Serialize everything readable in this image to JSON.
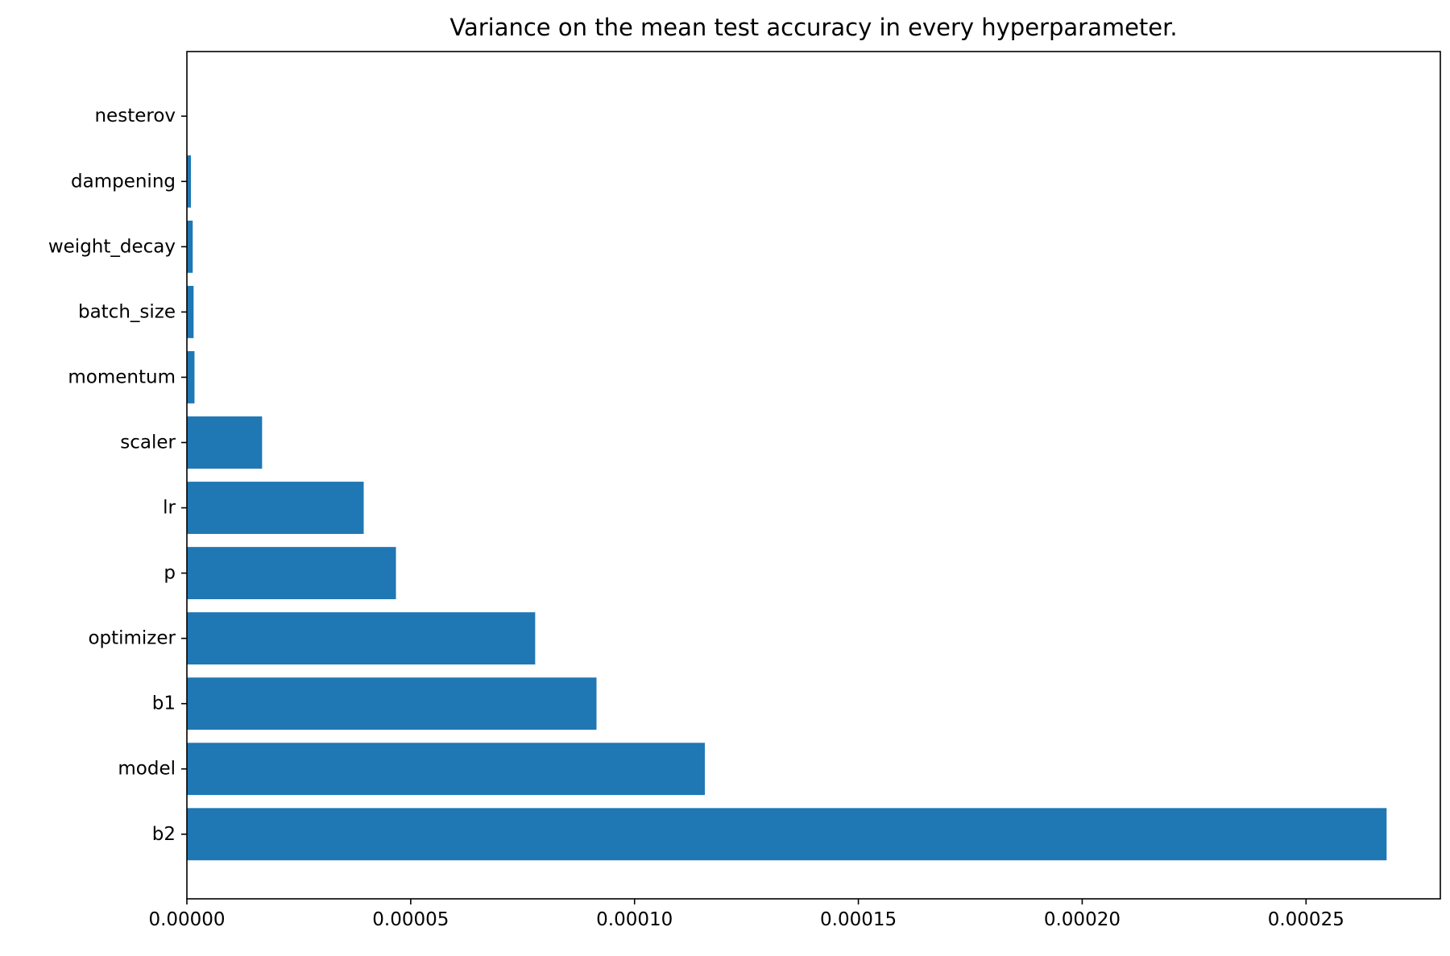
{
  "chart_data": {
    "type": "bar",
    "orientation": "horizontal",
    "title": "Variance on the mean test accuracy in every hyperparameter.",
    "xlabel": "",
    "ylabel": "",
    "categories": [
      "b2",
      "model",
      "b1",
      "optimizer",
      "p",
      "lr",
      "scaler",
      "momentum",
      "batch_size",
      "weight_decay",
      "dampening",
      "nesterov"
    ],
    "values": [
      0.000268,
      0.0001157,
      9.15e-05,
      7.78e-05,
      4.67e-05,
      3.95e-05,
      1.68e-05,
      1.7e-06,
      1.5e-06,
      1.3e-06,
      9e-07,
      0.0
    ],
    "xlim": [
      0,
      0.00028
    ],
    "xticks": [
      0,
      5e-05,
      0.0001,
      0.00015,
      0.0002,
      0.00025
    ],
    "xtick_labels": [
      "0.00000",
      "0.00005",
      "0.00010",
      "0.00015",
      "0.00020",
      "0.00025"
    ],
    "grid": false,
    "legend": "none",
    "bar_color": "#1f77b4"
  }
}
